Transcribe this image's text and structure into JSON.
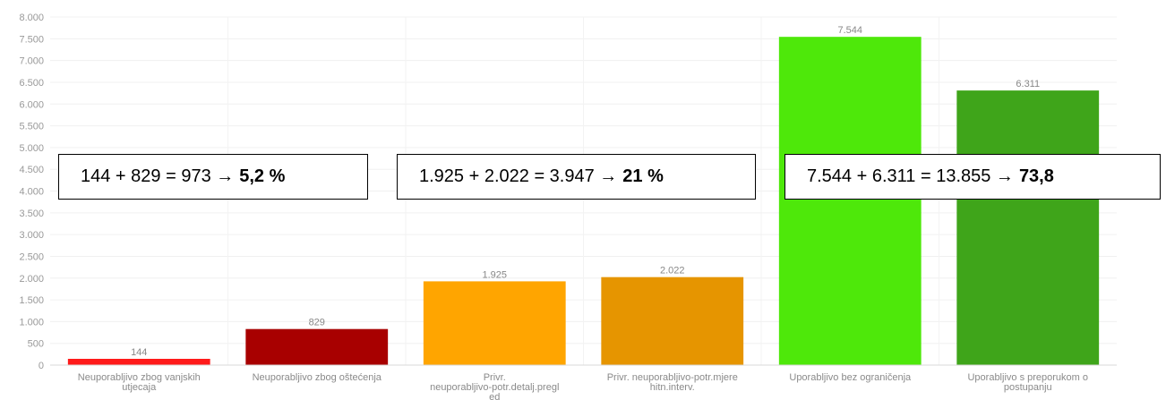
{
  "chart_data": {
    "type": "bar",
    "categories": [
      [
        "Neuporabljivo zbog vanjskih",
        "utjecaja"
      ],
      [
        "Neuporabljivo zbog oštećenja"
      ],
      [
        "Privr.",
        "neuporabljivo-potr.detalj.pregl",
        "ed"
      ],
      [
        "Privr. neuporabljivo-potr.mjere",
        "hitn.interv."
      ],
      [
        "Uporabljivo bez ograničenja"
      ],
      [
        "Uporabljivo s preporukom o",
        "postupanju"
      ]
    ],
    "values": [
      144,
      829,
      1925,
      2022,
      7544,
      6311
    ],
    "value_labels": [
      "144",
      "829",
      "1.925",
      "2.022",
      "7.544",
      "6.311"
    ],
    "colors": [
      "#ff1a1a",
      "#a80000",
      "#ffa500",
      "#e69500",
      "#4ee80a",
      "#3fa51a"
    ],
    "ylim": [
      0,
      8000
    ],
    "yticks": [
      0,
      500,
      1000,
      1500,
      2000,
      2500,
      3000,
      3500,
      4000,
      4500,
      5000,
      5500,
      6000,
      6500,
      7000,
      7500,
      8000
    ],
    "ytick_labels": [
      "0",
      "500",
      "1.000",
      "1.500",
      "2.000",
      "2.500",
      "3.000",
      "3.500",
      "4.000",
      "4.500",
      "5.000",
      "5.500",
      "6.000",
      "6.500",
      "7.000",
      "7.500",
      "8.000"
    ],
    "title": "",
    "xlabel": "",
    "ylabel": "",
    "grid": true
  },
  "annotations": [
    {
      "text": "144 + 829 = 973 → ",
      "bold": "5,2 %"
    },
    {
      "text": "1.925 + 2.022 = 3.947 → ",
      "bold": "21 %"
    },
    {
      "text": "7.544 + 6.311 = 13.855 → ",
      "bold": "73,8"
    }
  ]
}
